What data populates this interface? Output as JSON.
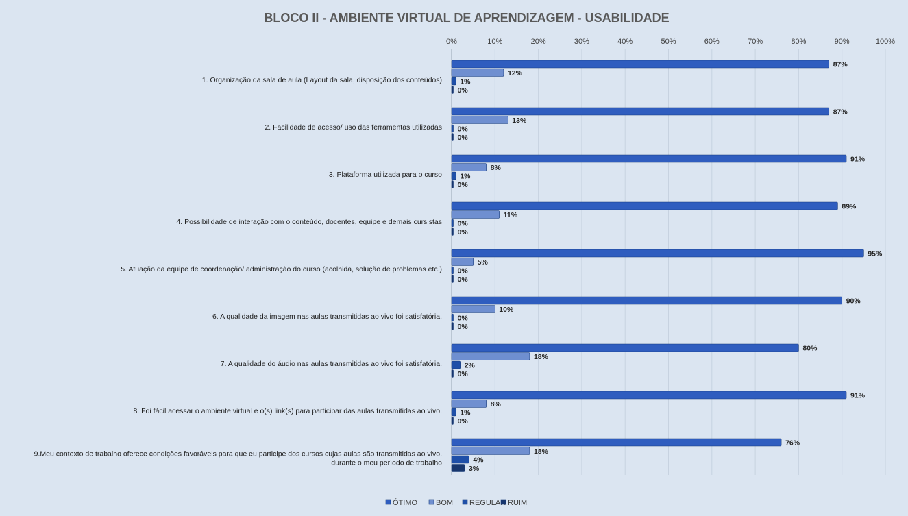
{
  "chart_data": {
    "type": "bar",
    "orientation": "horizontal",
    "title": "BLOCO II - AMBIENTE VIRTUAL DE APRENDIZAGEM - USABILIDADE",
    "xlim": [
      0,
      100
    ],
    "x_ticks": [
      "0%",
      "10%",
      "20%",
      "30%",
      "40%",
      "50%",
      "60%",
      "70%",
      "80%",
      "90%",
      "100%"
    ],
    "x_axis_position": "top",
    "grid": true,
    "legend_position": "bottom",
    "categories": [
      [
        "1. Organização da sala de aula (Layout da sala, disposição dos conteúdos)"
      ],
      [
        "2. Facilidade de acesso/ uso das ferramentas utilizadas"
      ],
      [
        "3. Plataforma utilizada para o curso"
      ],
      [
        "4. Possibilidade de interação com o conteúdo, docentes, equipe e demais cursistas"
      ],
      [
        "5. Atuação da equipe de coordenação/ administração do curso (acolhida, solução de problemas etc.)"
      ],
      [
        "6. A qualidade da imagem nas aulas transmitidas ao vivo foi satisfatória."
      ],
      [
        "7. A qualidade do áudio nas aulas transmitidas ao vivo foi satisfatória."
      ],
      [
        "8. Foi fácil acessar o ambiente virtual e o(s) link(s) para participar das aulas transmitidas ao vivo."
      ],
      [
        "9.Meu contexto de trabalho oferece condições favoráveis para que eu participe dos cursos cujas aulas são transmitidas ao vivo,",
        "durante o meu período de trabalho"
      ]
    ],
    "series": [
      {
        "name": "ÓTIMO",
        "color": "#2f5dbf",
        "values": [
          87,
          87,
          91,
          89,
          95,
          90,
          80,
          91,
          76
        ],
        "labels": [
          "87%",
          "87%",
          "91%",
          "89%",
          "95%",
          "90%",
          "80%",
          "91%",
          "76%"
        ]
      },
      {
        "name": "BOM",
        "color": "#6f8fd0",
        "values": [
          12,
          13,
          8,
          11,
          5,
          10,
          18,
          8,
          18
        ],
        "labels": [
          "12%",
          "13%",
          "8%",
          "11%",
          "5%",
          "10%",
          "18%",
          "8%",
          "18%"
        ]
      },
      {
        "name": "REGULAR",
        "color": "#1e4fa8",
        "values": [
          1,
          0,
          1,
          0,
          0,
          0,
          2,
          1,
          4
        ],
        "labels": [
          "1%",
          "0%",
          "1%",
          "0%",
          "0%",
          "0%",
          "2%",
          "1%",
          "4%"
        ]
      },
      {
        "name": "RUIM",
        "color": "#17366e",
        "values": [
          0,
          0,
          0,
          0,
          0,
          0,
          0,
          0,
          3
        ],
        "labels": [
          "0%",
          "0%",
          "0%",
          "0%",
          "0%",
          "0%",
          "0%",
          "0%",
          "3%"
        ]
      }
    ]
  }
}
